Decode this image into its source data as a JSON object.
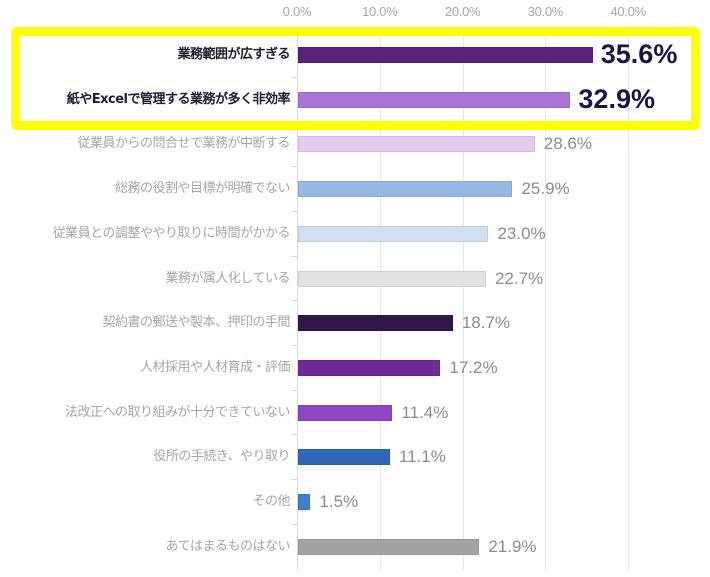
{
  "chart_data": {
    "type": "bar",
    "orientation": "horizontal",
    "title": "",
    "xlabel": "",
    "ylabel": "",
    "xlim": [
      0,
      40
    ],
    "x_ticks": [
      "0.0%",
      "10.0%",
      "20.0%",
      "30.0%",
      "40.0%"
    ],
    "grid": true,
    "categories": [
      "業務範囲が広すぎる",
      "紙やExcelで管理する業務が多く非効率",
      "従業員からの問合せで業務が中断する",
      "総務の役割や目標が明確でない",
      "従業員との調整ややり取りに時間がかかる",
      "業務が属人化している",
      "契約書の郵送や製本、押印の手間",
      "人材採用や人材育成・評価",
      "法改正への取り組みが十分できていない",
      "役所の手続き、やり取り",
      "その他",
      "あてはまるものはない"
    ],
    "values": [
      35.6,
      32.9,
      28.6,
      25.9,
      23.0,
      22.7,
      18.7,
      17.2,
      11.4,
      11.1,
      1.5,
      21.9
    ],
    "value_labels": [
      "35.6%",
      "32.9%",
      "28.6%",
      "25.9%",
      "23.0%",
      "22.7%",
      "18.7%",
      "17.2%",
      "11.4%",
      "11.1%",
      "1.5%",
      "21.9%"
    ],
    "bar_colors": [
      "#57237a",
      "#a875d6",
      "#e2cdef",
      "#98b7e3",
      "#d1dff2",
      "#e2e2e2",
      "#2f1747",
      "#6c2b97",
      "#8f45c6",
      "#2e67b8",
      "#3f7fd0",
      "#a3a3a3"
    ],
    "highlighted": [
      0,
      1
    ],
    "annotations": [
      "Yellow box highlighting top two items"
    ]
  },
  "highlight": {
    "color": "#ffff00"
  }
}
